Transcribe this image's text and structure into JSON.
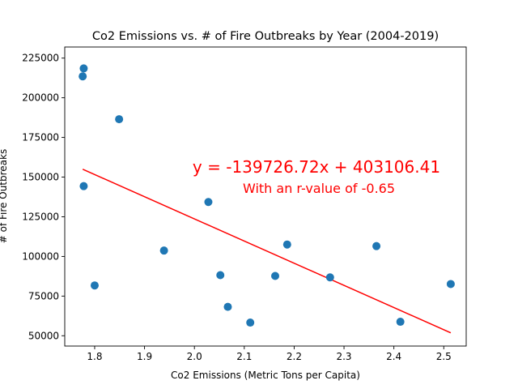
{
  "chart_data": {
    "type": "scatter",
    "title": "Co2 Emissions vs. # of Fire Outbreaks by Year (2004-2019)",
    "xlabel": "Co2 Emissions (Metric Tons per Capita)",
    "ylabel": "# of Fire Outbreaks",
    "xlim": [
      1.74,
      2.545
    ],
    "ylim": [
      43500,
      232000
    ],
    "xticks": [
      1.8,
      1.9,
      2.0,
      2.1,
      2.2,
      2.3,
      2.4,
      2.5
    ],
    "xtick_labels": [
      "1.8",
      "1.9",
      "2.0",
      "2.1",
      "2.2",
      "2.3",
      "2.4",
      "2.5"
    ],
    "yticks": [
      50000,
      75000,
      100000,
      125000,
      150000,
      175000,
      200000,
      225000
    ],
    "ytick_labels": [
      "50000",
      "75000",
      "100000",
      "125000",
      "150000",
      "175000",
      "200000",
      "225000"
    ],
    "grid": false,
    "colors": {
      "points": "#1f77b4",
      "regression": "#ff0000"
    },
    "points": [
      {
        "x": 1.778,
        "y": 218500
      },
      {
        "x": 1.776,
        "y": 213500
      },
      {
        "x": 1.849,
        "y": 186500
      },
      {
        "x": 1.778,
        "y": 144300
      },
      {
        "x": 2.028,
        "y": 134300
      },
      {
        "x": 1.939,
        "y": 103700
      },
      {
        "x": 2.186,
        "y": 107500
      },
      {
        "x": 2.365,
        "y": 106500
      },
      {
        "x": 1.8,
        "y": 81700
      },
      {
        "x": 2.052,
        "y": 88200
      },
      {
        "x": 2.162,
        "y": 87700
      },
      {
        "x": 2.272,
        "y": 86800
      },
      {
        "x": 2.514,
        "y": 82600
      },
      {
        "x": 2.067,
        "y": 68200
      },
      {
        "x": 2.112,
        "y": 58300
      },
      {
        "x": 2.413,
        "y": 58800
      }
    ],
    "regression": {
      "slope": -139726.72,
      "intercept": 403106.41,
      "x_range": [
        1.776,
        2.514
      ],
      "equation": "y = -139726.72x + 403106.41",
      "r_text": "With an r-value of -0.65"
    }
  }
}
